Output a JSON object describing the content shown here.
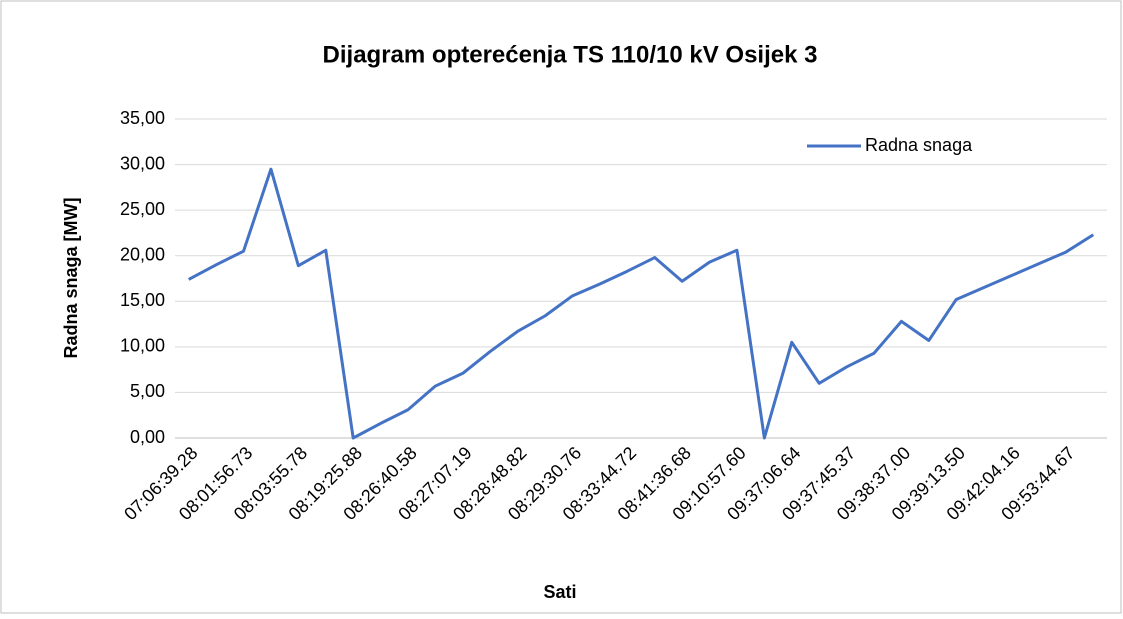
{
  "chart_data": {
    "type": "line",
    "title": "Dijagram opterećenja TS 110/10 kV Osijek 3",
    "xlabel": "Sati",
    "ylabel": "Radna snaga [MW]",
    "categories": [
      "07:06:39.28",
      null,
      "08:01:56.73",
      null,
      "08:03:55.78",
      null,
      "08:19:25.88",
      null,
      "08:26:40.58",
      null,
      "08:27:07.19",
      null,
      "08:28:48.82",
      null,
      "08:29:30.76",
      null,
      "08:33:44.72",
      null,
      "08:41:36.68",
      null,
      "09:10:57.60",
      null,
      "09:37:06.64",
      null,
      "09:37:45.37",
      null,
      "09:38:37.00",
      null,
      "09:39:13.50",
      null,
      "09:42:04.16",
      null,
      "09:53:44.67",
      null
    ],
    "series": [
      {
        "name": "Radna snaga",
        "color": "#4472c4",
        "values": [
          17.4,
          19.0,
          20.5,
          29.5,
          18.9,
          20.6,
          0,
          1.6,
          3.1,
          5.7,
          7.1,
          9.5,
          11.7,
          13.4,
          15.6,
          16.9,
          18.3,
          19.8,
          17.2,
          19.3,
          20.6,
          0,
          10.5,
          6.0,
          7.8,
          9.3,
          12.8,
          10.7,
          15.2,
          16.5,
          17.8,
          19.1,
          20.4,
          22.3
        ]
      }
    ],
    "ylim": [
      0,
      35
    ],
    "yticks": [
      {
        "value": 0,
        "label": "0,00"
      },
      {
        "value": 5,
        "label": "5,00"
      },
      {
        "value": 10,
        "label": "10,00"
      },
      {
        "value": 15,
        "label": "15,00"
      },
      {
        "value": 20,
        "label": "20,00"
      },
      {
        "value": 25,
        "label": "25,00"
      },
      {
        "value": 30,
        "label": "30,00"
      },
      {
        "value": 35,
        "label": "35,00"
      }
    ],
    "grid": true,
    "legend": "upper right"
  }
}
